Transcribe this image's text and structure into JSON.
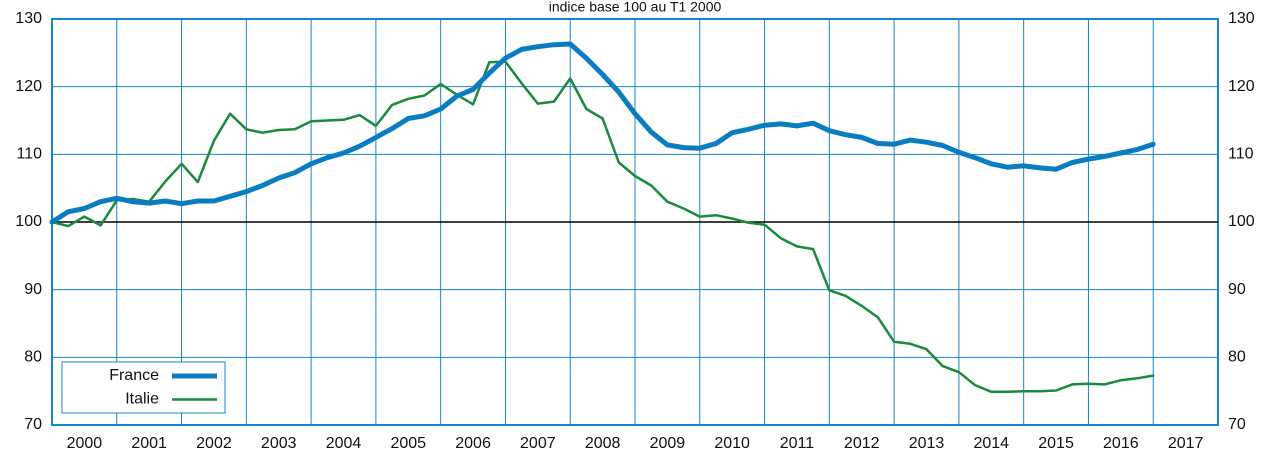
{
  "chart_data": {
    "type": "line",
    "subtitle": "indice base 100 au T1 2000",
    "x": [
      2000,
      2000.25,
      2000.5,
      2000.75,
      2001,
      2001.25,
      2001.5,
      2001.75,
      2002,
      2002.25,
      2002.5,
      2002.75,
      2003,
      2003.25,
      2003.5,
      2003.75,
      2004,
      2004.25,
      2004.5,
      2004.75,
      2005,
      2005.25,
      2005.5,
      2005.75,
      2006,
      2006.25,
      2006.5,
      2006.75,
      2007,
      2007.25,
      2007.5,
      2007.75,
      2008,
      2008.25,
      2008.5,
      2008.75,
      2009,
      2009.25,
      2009.5,
      2009.75,
      2010,
      2010.25,
      2010.5,
      2010.75,
      2011,
      2011.25,
      2011.5,
      2011.75,
      2012,
      2012.25,
      2012.5,
      2012.75,
      2013,
      2013.25,
      2013.5,
      2013.75,
      2014,
      2014.25,
      2014.5,
      2014.75,
      2015,
      2015.25,
      2015.5,
      2015.75,
      2016,
      2016.25,
      2016.5,
      2016.75,
      2017
    ],
    "series": [
      {
        "name": "France",
        "color": "#0a7cc1",
        "width": 5,
        "values": [
          100,
          101.5,
          102,
          103,
          103.5,
          103,
          102.8,
          103.1,
          102.7,
          103.1,
          103.1,
          103.8,
          104.5,
          105.4,
          106.5,
          107.3,
          108.6,
          109.5,
          110.2,
          111.2,
          112.5,
          113.8,
          115.3,
          115.7,
          116.7,
          118.6,
          119.6,
          122,
          124.2,
          125.5,
          125.9,
          126.2,
          126.3,
          124.2,
          121.8,
          119.2,
          116,
          113.3,
          111.4,
          111,
          110.9,
          111.6,
          113.2,
          113.7,
          114.3,
          114.5,
          114.2,
          114.6,
          113.5,
          112.9,
          112.5,
          111.6,
          111.5,
          112.1,
          111.8,
          111.3,
          110.3,
          109.5,
          108.6,
          108.1,
          108.3,
          108,
          107.8,
          108.8,
          109.3,
          109.7,
          110.2,
          110.7,
          111.5
        ]
      },
      {
        "name": "Italie",
        "color": "#1a8a3c",
        "width": 2.5,
        "values": [
          100,
          99.4,
          100.8,
          99.5,
          103.2,
          103.4,
          103,
          106,
          108.6,
          105.9,
          112,
          116,
          113.7,
          113.2,
          113.6,
          113.7,
          114.9,
          115,
          115.1,
          115.8,
          114.2,
          117.3,
          118.2,
          118.7,
          120.4,
          118.8,
          117.4,
          123.6,
          123.7,
          120.5,
          117.5,
          117.8,
          121.2,
          116.7,
          115.3,
          108.8,
          106.8,
          105.4,
          103,
          102,
          100.8,
          101,
          100.5,
          99.9,
          99.6,
          97.6,
          96.4,
          96,
          89.9,
          89.1,
          87.6,
          85.9,
          82.3,
          82,
          81.2,
          78.7,
          77.8,
          75.9,
          74.9,
          74.9,
          75,
          75,
          75.1,
          76,
          76.1,
          76,
          76.6,
          76.9,
          77.3
        ]
      }
    ],
    "xlim": [
      2000,
      2018
    ],
    "xticks": [
      2000,
      2001,
      2002,
      2003,
      2004,
      2005,
      2006,
      2007,
      2008,
      2009,
      2010,
      2011,
      2012,
      2013,
      2014,
      2015,
      2016,
      2017
    ],
    "ylim": [
      70,
      130
    ],
    "yticks": [
      70,
      80,
      90,
      100,
      110,
      120,
      130
    ],
    "baseline": 100,
    "grid": true,
    "legend": "lower left"
  }
}
